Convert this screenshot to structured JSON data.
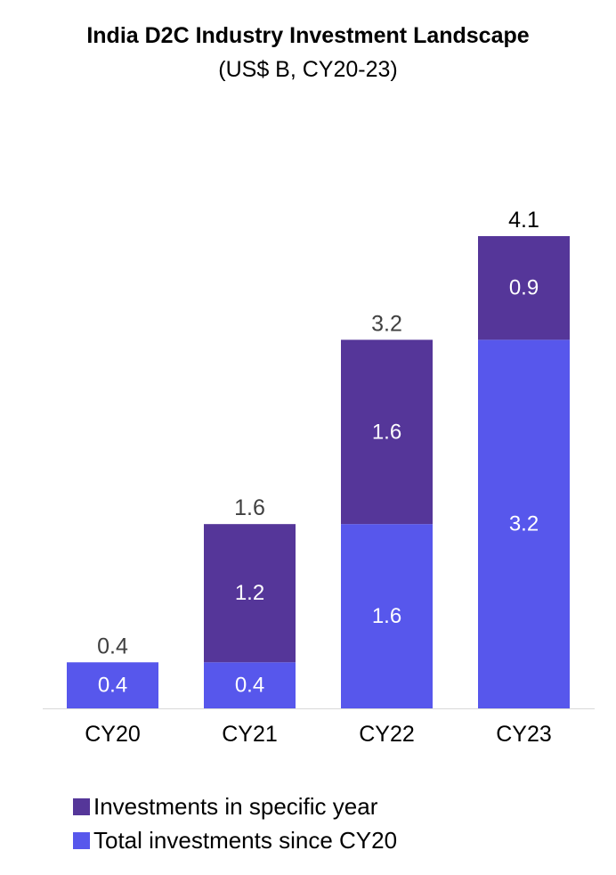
{
  "chart_data": {
    "type": "bar",
    "stacked": true,
    "title": "India D2C Industry Investment Landscape",
    "subtitle": "(US$ B, CY20-23)",
    "categories": [
      "CY20",
      "CY21",
      "CY22",
      "CY23"
    ],
    "series": [
      {
        "name": "Total investments since CY20",
        "color": "#5757EC",
        "values": [
          0.4,
          0.4,
          1.6,
          3.2
        ],
        "labels": [
          "0.4",
          "0.4",
          "1.6",
          "3.2"
        ]
      },
      {
        "name": "Investments in specific year",
        "color": "#553699",
        "values": [
          0,
          1.2,
          1.6,
          0.9
        ],
        "labels": [
          "",
          "1.2",
          "1.6",
          "0.9"
        ]
      }
    ],
    "totals": [
      0.4,
      1.6,
      3.2,
      4.1
    ],
    "total_labels": [
      "0.4",
      "1.6",
      "3.2",
      "4.1"
    ],
    "ylim": [
      0,
      4.1
    ],
    "grid": false,
    "legend_position": "bottom-left",
    "legend_order": [
      "Investments in specific year",
      "Total investments since CY20"
    ]
  }
}
